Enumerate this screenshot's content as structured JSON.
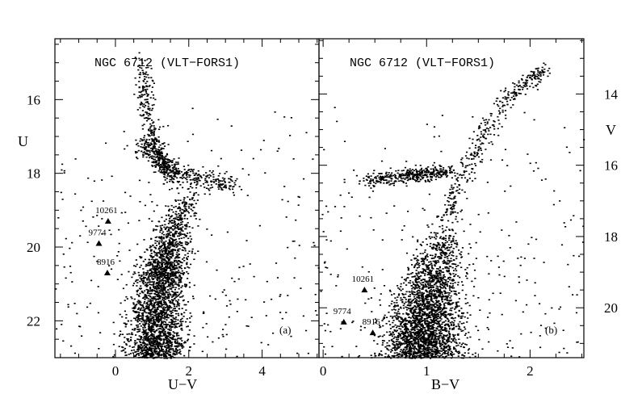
{
  "chart_data": [
    {
      "type": "scatter",
      "panel": "a",
      "title": "NGC 6712 (VLT−FORS1)",
      "tag": "(a)",
      "xlabel": "U−V",
      "ylabel": "U",
      "xlim": [
        -1.65,
        5.55
      ],
      "ylim": [
        23.0,
        14.35
      ],
      "y_inverted": true,
      "x_ticks": [
        0,
        2,
        4
      ],
      "y_ticks": [
        16,
        18,
        20,
        22
      ],
      "y_axis_side": "left",
      "grid": false,
      "legend": "none",
      "labeled_stars": [
        {
          "id": "10261",
          "x": -0.2,
          "y": 19.3
        },
        {
          "id": "9774",
          "x": -0.45,
          "y": 19.9
        },
        {
          "id": "8916",
          "x": -0.22,
          "y": 20.7
        }
      ],
      "sequences": {
        "main_sequence_ridge": [
          [
            1.05,
            23.0
          ],
          [
            1.1,
            22.0
          ],
          [
            1.2,
            21.0
          ],
          [
            1.35,
            20.3
          ],
          [
            1.55,
            19.6
          ],
          [
            1.8,
            18.9
          ],
          [
            2.2,
            18.3
          ]
        ],
        "horizontal_branch": [
          [
            0.6,
            17.2
          ],
          [
            1.0,
            17.45
          ],
          [
            1.4,
            17.8
          ],
          [
            1.9,
            18.0
          ],
          [
            2.6,
            18.2
          ],
          [
            3.2,
            18.3
          ]
        ],
        "giant_branch": [
          [
            1.6,
            18.2
          ],
          [
            1.2,
            17.6
          ],
          [
            0.95,
            17.0
          ],
          [
            0.8,
            16.0
          ],
          [
            0.7,
            15.0
          ]
        ]
      }
    },
    {
      "type": "scatter",
      "panel": "b",
      "title": "NGC 6712 (VLT−FORS1)",
      "tag": "(b)",
      "xlabel": "B−V",
      "ylabel": "V",
      "xlim": [
        -0.04,
        2.52
      ],
      "ylim": [
        21.4,
        12.45
      ],
      "y_inverted": true,
      "x_ticks": [
        0,
        1,
        2
      ],
      "y_ticks": [
        14,
        16,
        18,
        20
      ],
      "y_axis_side": "right",
      "grid": false,
      "legend": "none",
      "labeled_stars": [
        {
          "id": "10261",
          "x": 0.4,
          "y": 19.5
        },
        {
          "id": "9774",
          "x": 0.2,
          "y": 20.4
        },
        {
          "id": "8916",
          "x": 0.48,
          "y": 20.7
        }
      ],
      "sequences": {
        "main_sequence_ridge": [
          [
            0.95,
            21.4
          ],
          [
            0.96,
            20.6
          ],
          [
            1.0,
            19.8
          ],
          [
            1.07,
            19.0
          ],
          [
            1.14,
            18.2
          ],
          [
            1.2,
            17.4
          ]
        ],
        "red_giant_branch": [
          [
            1.2,
            17.4
          ],
          [
            1.3,
            16.6
          ],
          [
            1.45,
            15.6
          ],
          [
            1.6,
            14.8
          ],
          [
            1.8,
            14.0
          ],
          [
            2.0,
            13.6
          ],
          [
            2.15,
            13.3
          ]
        ],
        "horizontal_branch": [
          [
            0.4,
            16.4
          ],
          [
            0.7,
            16.3
          ],
          [
            0.9,
            16.25
          ],
          [
            1.05,
            16.2
          ],
          [
            1.2,
            16.15
          ]
        ]
      }
    }
  ]
}
